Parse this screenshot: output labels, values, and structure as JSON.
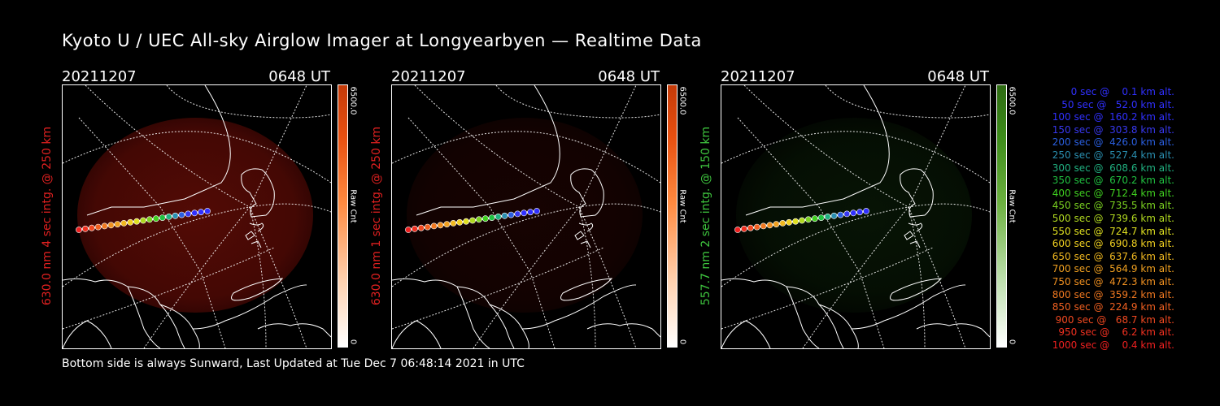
{
  "title": "Kyoto U / UEC All-sky Airglow Imager at Longyearbyen — Realtime Data",
  "footer": "Bottom side is always Sunward, Last Updated at Tue Dec  7 06:48:14 2021 in UTC",
  "panels": [
    {
      "date": "20211207",
      "time": "0648 UT",
      "label": "630.0 nm  4 sec intg. @ 250 km",
      "label_color": "#e02020",
      "cbar_max": "6500.0",
      "cbar_unit": "Raw Cnt",
      "cbar_min": "0",
      "cbar_color": "red",
      "glow_intensity": 0.55
    },
    {
      "date": "20211207",
      "time": "0648 UT",
      "label": "630.0 nm  1 sec intg. @ 250 km",
      "label_color": "#e02020",
      "cbar_max": "6500.0",
      "cbar_unit": "Raw Cnt",
      "cbar_min": "0",
      "cbar_color": "red",
      "glow_intensity": 0.15
    },
    {
      "date": "20211207",
      "time": "0648 UT",
      "label": "557.7 nm  2 sec intg. @ 150 km",
      "label_color": "#3ec43e",
      "cbar_max": "6500.0",
      "cbar_unit": "Raw Cnt",
      "cbar_min": "0",
      "cbar_color": "green",
      "glow_intensity": 0.18
    }
  ],
  "legend": [
    {
      "text": "   0 sec @    0.1 km alt.",
      "color": "#3030ff"
    },
    {
      "text": "  50 sec @   52.0 km alt.",
      "color": "#3030ff"
    },
    {
      "text": " 100 sec @  160.2 km alt.",
      "color": "#3030ff"
    },
    {
      "text": " 150 sec @  303.8 km alt.",
      "color": "#3838f0"
    },
    {
      "text": " 200 sec @  426.0 km alt.",
      "color": "#2a5fe0"
    },
    {
      "text": " 250 sec @  527.4 km alt.",
      "color": "#2a8fb0"
    },
    {
      "text": " 300 sec @  608.6 km alt.",
      "color": "#20b080"
    },
    {
      "text": " 350 sec @  670.2 km alt.",
      "color": "#20c040"
    },
    {
      "text": " 400 sec @  712.4 km alt.",
      "color": "#40d020"
    },
    {
      "text": " 450 sec @  735.5 km alt.",
      "color": "#7ad020"
    },
    {
      "text": " 500 sec @  739.6 km alt.",
      "color": "#b0d820"
    },
    {
      "text": " 550 sec @  724.7 km alt.",
      "color": "#e0e020"
    },
    {
      "text": " 600 sec @  690.8 km alt.",
      "color": "#f0d020"
    },
    {
      "text": " 650 sec @  637.6 km alt.",
      "color": "#f0b820"
    },
    {
      "text": " 700 sec @  564.9 km alt.",
      "color": "#f0a020"
    },
    {
      "text": " 750 sec @  472.3 km alt.",
      "color": "#f09020"
    },
    {
      "text": " 800 sec @  359.2 km alt.",
      "color": "#f07820"
    },
    {
      "text": " 850 sec @  224.9 km alt.",
      "color": "#f06020"
    },
    {
      "text": " 900 sec @   68.7 km alt.",
      "color": "#f04820"
    },
    {
      "text": " 950 sec @    6.2 km alt.",
      "color": "#f03020"
    },
    {
      "text": "1000 sec @    0.4 km alt.",
      "color": "#f02020"
    }
  ]
}
